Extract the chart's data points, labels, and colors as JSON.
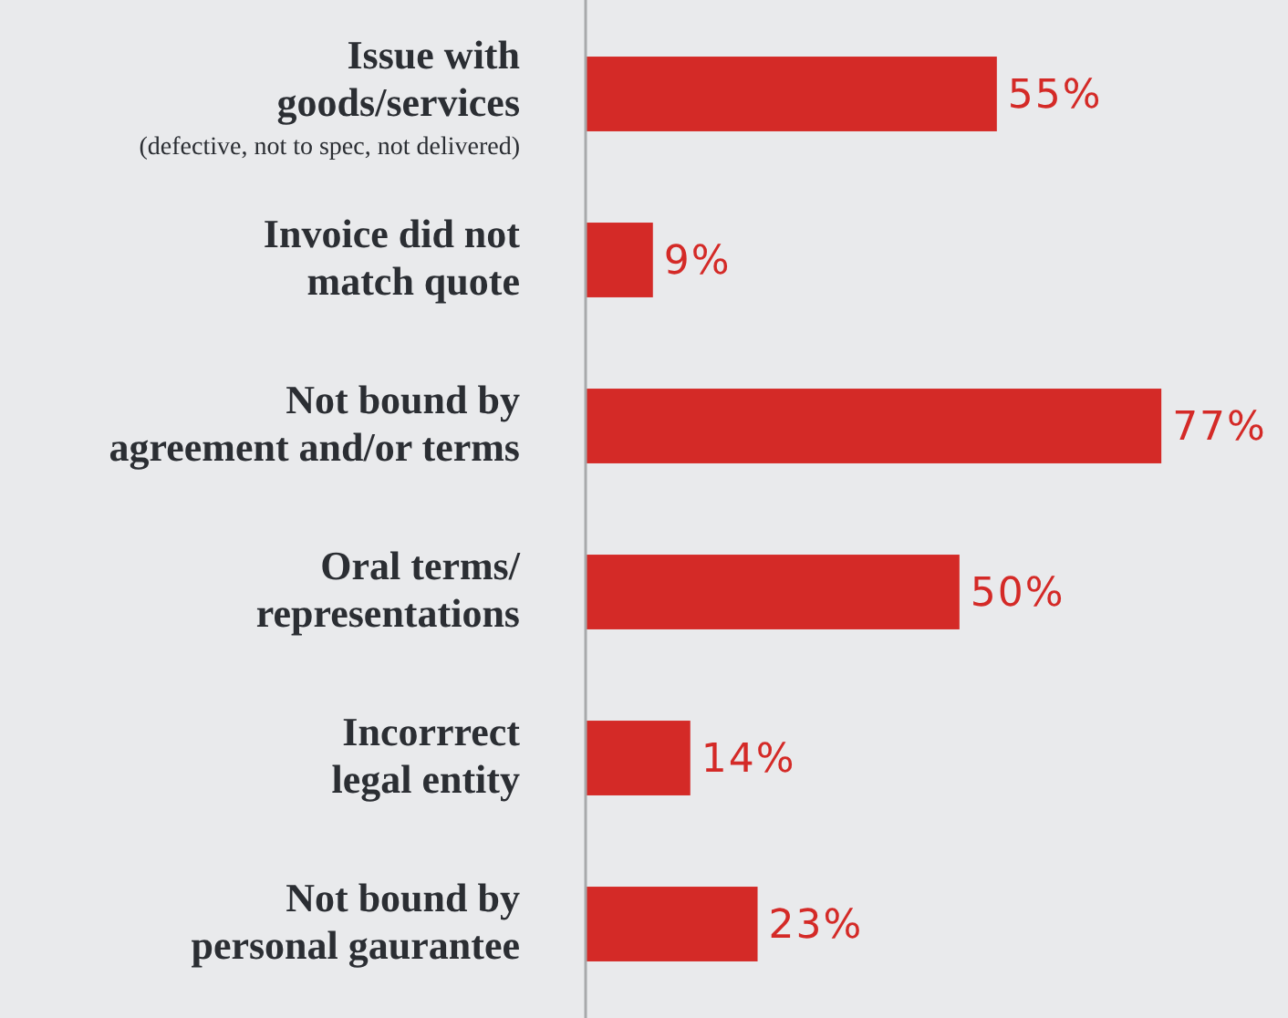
{
  "chart_data": {
    "type": "bar",
    "orientation": "horizontal",
    "categories": [
      "Issue with\ngoods/services\n(defective, not to spec, not delivered)",
      "Invoice did not\nmatch quote",
      "Not bound by\nagreement and/or terms",
      "Oral terms/\nrepresentations",
      "Incorrrect\nlegal entity",
      "Not bound by\npersonal gaurantee"
    ],
    "values": [
      55,
      9,
      77,
      50,
      14,
      23
    ],
    "value_labels": [
      "55%",
      "9%",
      "77%",
      "50%",
      "14%",
      "23%"
    ],
    "color": "#d42a27"
  }
}
